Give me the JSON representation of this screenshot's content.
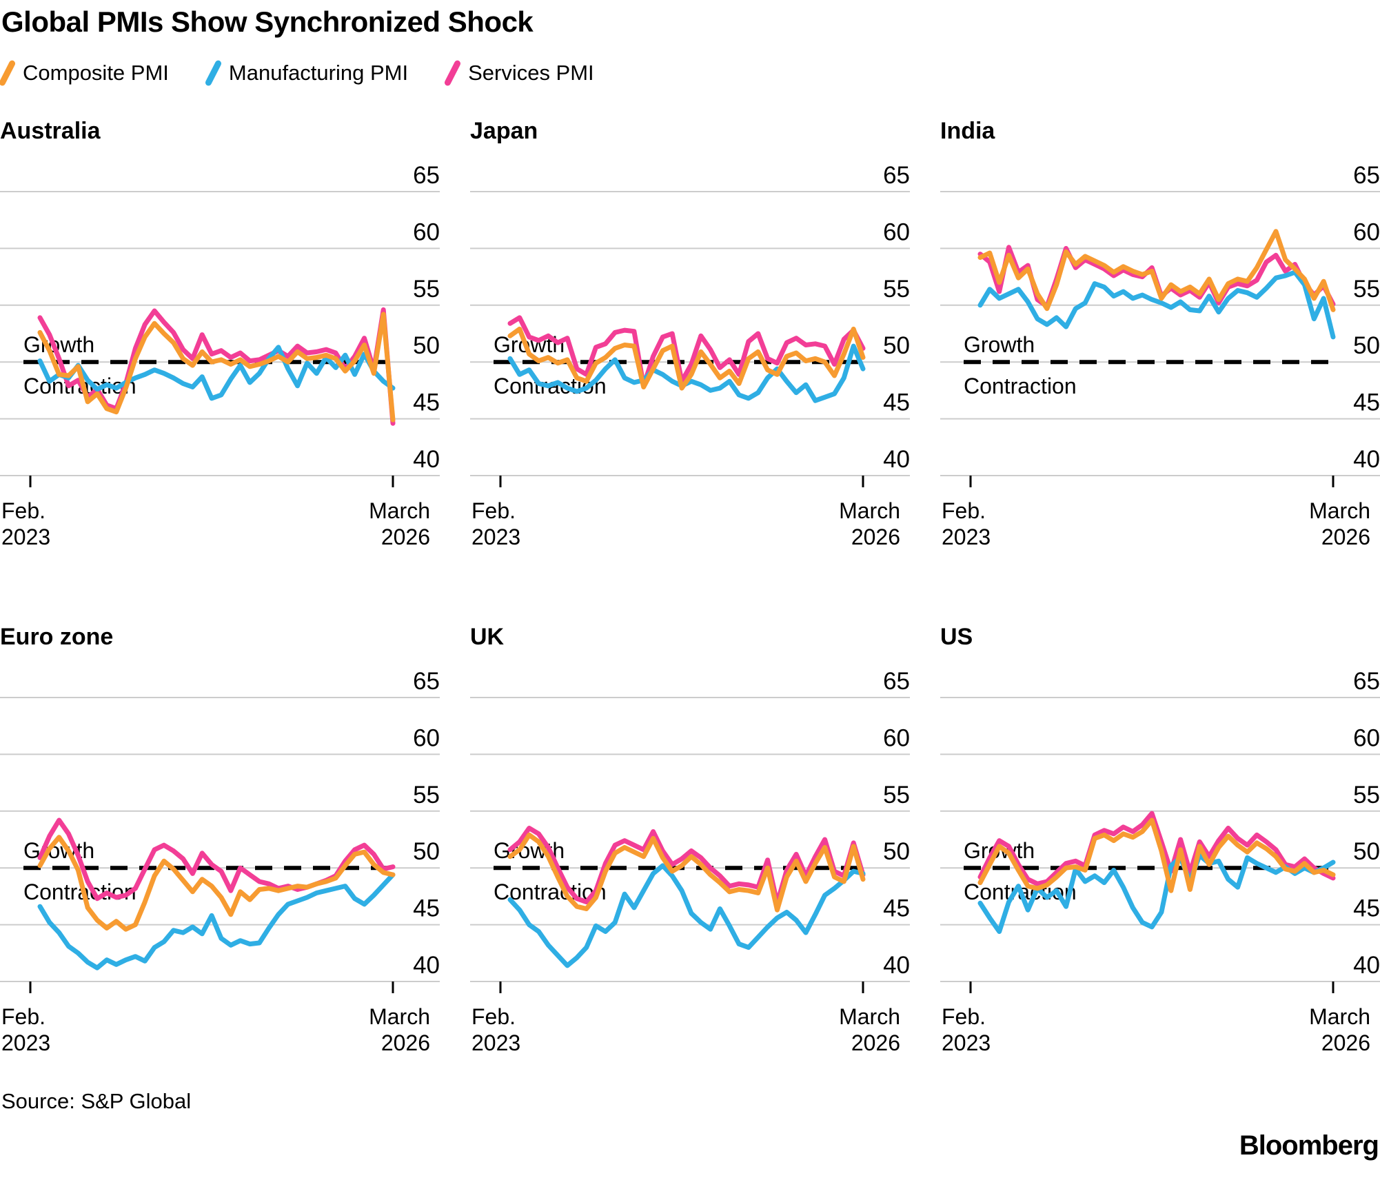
{
  "title": "Global PMIs Show Synchronized Shock",
  "legend": [
    {
      "label": "Composite PMI",
      "color": "#F79B31",
      "icon": "slash-icon"
    },
    {
      "label": "Manufacturing PMI",
      "color": "#2FAEE4",
      "icon": "slash-icon"
    },
    {
      "label": "Services PMI",
      "color": "#F23E96",
      "icon": "slash-icon"
    }
  ],
  "axis": {
    "y_ticks": [
      65,
      60,
      55,
      50,
      45,
      40
    ],
    "x_tick_start": "Feb.\n2023",
    "x_tick_end": "March\n2026",
    "threshold_value": 50,
    "growth_label": "Growth",
    "contraction_label": "Contraction",
    "grid_color": "#cccccc",
    "threshold_color": "#000000"
  },
  "source": "Source: S&P Global",
  "brand": "Bloomberg",
  "chart_data": [
    {
      "type": "line",
      "title": "Australia",
      "x": {
        "start": "Feb. 2023",
        "end": "March 2026",
        "points": 38
      },
      "ylim": [
        38,
        66.5
      ],
      "gridlines": [
        65,
        60,
        55,
        50,
        45,
        40
      ],
      "legend_position": "top",
      "series": [
        {
          "name": "Composite PMI",
          "color": "#F79B31",
          "values": [
            52.6,
            51.0,
            48.9,
            48.8,
            49.6,
            46.5,
            47.2,
            45.9,
            45.6,
            47.7,
            50.3,
            52.2,
            53.4,
            52.5,
            51.7,
            50.3,
            49.7,
            50.9,
            50.0,
            50.2,
            49.8,
            50.2,
            49.6,
            49.8,
            50.1,
            50.5,
            50.0,
            50.9,
            50.3,
            50.4,
            50.6,
            50.3,
            49.2,
            50.1,
            51.5,
            49.0,
            54.2,
            44.9
          ]
        },
        {
          "name": "Manufacturing PMI",
          "color": "#2FAEE4",
          "values": [
            50.1,
            48.3,
            48.9,
            48.6,
            49.7,
            48.4,
            47.6,
            48.0,
            47.7,
            48.2,
            48.6,
            48.9,
            49.3,
            49.0,
            48.6,
            48.1,
            47.8,
            48.7,
            46.8,
            47.1,
            48.5,
            49.7,
            48.2,
            49.0,
            50.3,
            51.3,
            49.4,
            47.9,
            49.9,
            49.0,
            50.4,
            49.5,
            50.6,
            48.9,
            50.7,
            49.2,
            48.3,
            47.7
          ]
        },
        {
          "name": "Services PMI",
          "color": "#F23E96",
          "values": [
            53.9,
            52.4,
            50.3,
            47.9,
            48.4,
            46.9,
            47.6,
            46.2,
            45.9,
            48.1,
            51.2,
            53.3,
            54.5,
            53.5,
            52.6,
            51.1,
            50.3,
            52.4,
            50.7,
            51.0,
            50.4,
            50.8,
            50.1,
            50.2,
            50.6,
            51.0,
            50.5,
            51.4,
            50.8,
            50.9,
            51.1,
            50.8,
            49.4,
            50.5,
            52.1,
            49.3,
            54.6,
            44.6
          ]
        }
      ]
    },
    {
      "type": "line",
      "title": "Japan",
      "x": {
        "start": "Feb. 2023",
        "end": "March 2026",
        "points": 38
      },
      "ylim": [
        38,
        66.5
      ],
      "gridlines": [
        65,
        60,
        55,
        50,
        45,
        40
      ],
      "legend_position": "top",
      "series": [
        {
          "name": "Composite PMI",
          "color": "#F79B31",
          "values": [
            52.3,
            52.9,
            50.7,
            50.1,
            50.4,
            49.9,
            50.2,
            48.6,
            48.3,
            49.9,
            50.4,
            51.2,
            51.5,
            51.4,
            47.8,
            49.4,
            51.0,
            51.4,
            47.7,
            48.9,
            50.9,
            49.8,
            48.6,
            49.2,
            48.1,
            50.3,
            50.9,
            49.3,
            48.9,
            50.5,
            50.8,
            50.1,
            50.3,
            50.0,
            48.8,
            50.7,
            52.9,
            50.4
          ]
        },
        {
          "name": "Manufacturing PMI",
          "color": "#2FAEE4",
          "values": [
            50.3,
            48.9,
            49.3,
            48.1,
            47.9,
            48.2,
            47.7,
            47.4,
            47.7,
            48.4,
            49.4,
            50.2,
            48.6,
            48.2,
            48.4,
            49.3,
            48.9,
            48.3,
            47.9,
            48.3,
            48.0,
            47.5,
            47.7,
            48.3,
            47.1,
            46.8,
            47.3,
            48.6,
            49.4,
            48.3,
            47.3,
            48.0,
            46.6,
            46.9,
            47.2,
            48.6,
            51.4,
            49.4
          ]
        },
        {
          "name": "Services PMI",
          "color": "#F23E96",
          "values": [
            53.4,
            53.9,
            52.2,
            51.9,
            52.3,
            51.7,
            52.1,
            49.4,
            48.9,
            51.3,
            51.6,
            52.6,
            52.8,
            52.7,
            47.9,
            50.5,
            52.2,
            52.5,
            48.3,
            49.8,
            52.3,
            51.1,
            49.5,
            50.2,
            48.9,
            51.8,
            52.5,
            50.3,
            49.9,
            51.7,
            52.1,
            51.5,
            51.6,
            51.4,
            49.8,
            52.0,
            52.8,
            51.2
          ]
        }
      ]
    },
    {
      "type": "line",
      "title": "India",
      "x": {
        "start": "Feb. 2023",
        "end": "March 2026",
        "points": 38
      },
      "ylim": [
        38,
        66.5
      ],
      "gridlines": [
        65,
        60,
        55,
        50,
        45,
        40
      ],
      "legend_position": "top",
      "series": [
        {
          "name": "Composite PMI",
          "color": "#F79B31",
          "values": [
            59.2,
            59.6,
            57.0,
            59.4,
            57.4,
            58.2,
            56.0,
            54.7,
            56.8,
            59.7,
            58.6,
            59.3,
            58.9,
            58.5,
            57.9,
            58.4,
            58.0,
            57.7,
            58.0,
            55.6,
            56.8,
            56.2,
            56.6,
            56.0,
            57.3,
            55.5,
            56.9,
            57.3,
            57.1,
            58.3,
            59.9,
            61.5,
            59.0,
            58.2,
            57.3,
            55.6,
            57.1,
            54.6
          ]
        },
        {
          "name": "Manufacturing PMI",
          "color": "#2FAEE4",
          "values": [
            55.0,
            56.4,
            55.6,
            56.0,
            56.4,
            55.3,
            53.8,
            53.3,
            53.9,
            53.1,
            54.7,
            55.2,
            56.9,
            56.6,
            55.8,
            56.2,
            55.6,
            55.9,
            55.5,
            55.2,
            54.8,
            55.3,
            54.6,
            54.5,
            55.8,
            54.4,
            55.6,
            56.3,
            56.1,
            55.7,
            56.5,
            57.4,
            57.6,
            57.9,
            56.8,
            53.8,
            55.6,
            52.2
          ]
        },
        {
          "name": "Services PMI",
          "color": "#F23E96",
          "values": [
            59.5,
            58.8,
            56.2,
            60.1,
            57.9,
            58.5,
            55.5,
            54.9,
            57.3,
            60.0,
            58.3,
            59.0,
            58.6,
            58.2,
            57.6,
            58.1,
            57.7,
            57.5,
            58.3,
            55.8,
            56.5,
            55.9,
            56.3,
            55.7,
            57.0,
            55.2,
            56.6,
            56.9,
            56.7,
            57.2,
            58.8,
            59.4,
            58.0,
            58.6,
            56.9,
            55.9,
            56.7,
            55.1
          ]
        }
      ]
    },
    {
      "type": "line",
      "title": "Euro zone",
      "x": {
        "start": "Feb. 2023",
        "end": "March 2026",
        "points": 38
      },
      "ylim": [
        38,
        66.5
      ],
      "gridlines": [
        65,
        60,
        55,
        50,
        45,
        40
      ],
      "legend_position": "top",
      "series": [
        {
          "name": "Composite PMI",
          "color": "#F79B31",
          "values": [
            50.2,
            51.7,
            52.7,
            51.5,
            49.8,
            46.5,
            45.4,
            44.7,
            45.3,
            44.6,
            45.0,
            47.0,
            49.3,
            50.6,
            49.9,
            48.9,
            47.9,
            49.0,
            48.4,
            47.4,
            45.9,
            47.9,
            47.2,
            48.1,
            48.2,
            48.0,
            48.2,
            48.4,
            48.3,
            48.6,
            48.8,
            49.1,
            50.2,
            51.2,
            51.4,
            50.3,
            49.6,
            49.4
          ]
        },
        {
          "name": "Manufacturing PMI",
          "color": "#2FAEE4",
          "values": [
            46.6,
            45.2,
            44.3,
            43.1,
            42.5,
            41.7,
            41.2,
            41.9,
            41.5,
            41.9,
            42.2,
            41.8,
            43.0,
            43.5,
            44.5,
            44.3,
            44.8,
            44.2,
            45.8,
            43.8,
            43.2,
            43.6,
            43.3,
            43.4,
            44.7,
            45.9,
            46.8,
            47.1,
            47.4,
            47.8,
            48.0,
            48.2,
            48.4,
            47.3,
            46.8,
            47.6,
            48.5,
            49.4
          ]
        },
        {
          "name": "Services PMI",
          "color": "#F23E96",
          "values": [
            50.9,
            52.8,
            54.2,
            53.0,
            51.1,
            48.8,
            47.3,
            47.8,
            47.4,
            47.6,
            48.2,
            49.9,
            51.6,
            52.0,
            51.5,
            50.8,
            49.5,
            51.3,
            50.3,
            49.7,
            48.0,
            50.0,
            49.4,
            48.8,
            48.6,
            48.2,
            48.4,
            48.1,
            48.3,
            48.6,
            48.9,
            49.3,
            50.6,
            51.6,
            52.0,
            51.2,
            49.9,
            50.1
          ]
        }
      ]
    },
    {
      "type": "line",
      "title": "UK",
      "x": {
        "start": "Feb. 2023",
        "end": "March 2026",
        "points": 38
      },
      "ylim": [
        38,
        66.5
      ],
      "gridlines": [
        65,
        60,
        55,
        50,
        45,
        40
      ],
      "legend_position": "top",
      "series": [
        {
          "name": "Composite PMI",
          "color": "#F79B31",
          "values": [
            51.0,
            51.6,
            52.9,
            52.3,
            51.0,
            49.2,
            47.5,
            46.6,
            46.4,
            47.4,
            49.7,
            51.3,
            51.8,
            51.4,
            51.0,
            52.6,
            50.9,
            49.7,
            50.2,
            51.0,
            50.3,
            49.4,
            48.7,
            47.9,
            48.1,
            48.0,
            47.8,
            50.0,
            46.3,
            49.2,
            50.6,
            48.8,
            50.4,
            51.8,
            49.2,
            48.8,
            51.9,
            49.0
          ]
        },
        {
          "name": "Manufacturing PMI",
          "color": "#2FAEE4",
          "values": [
            47.2,
            46.3,
            45.0,
            44.4,
            43.2,
            42.3,
            41.4,
            42.1,
            43.0,
            44.9,
            44.4,
            45.2,
            47.7,
            46.5,
            48.0,
            49.5,
            50.2,
            49.3,
            48.0,
            46.0,
            45.2,
            44.6,
            46.4,
            44.9,
            43.3,
            43.0,
            43.9,
            44.8,
            45.6,
            46.1,
            45.4,
            44.3,
            45.9,
            47.6,
            48.2,
            48.9,
            49.7,
            49.5
          ]
        },
        {
          "name": "Services PMI",
          "color": "#F23E96",
          "values": [
            51.6,
            52.3,
            53.5,
            53.0,
            51.8,
            50.0,
            48.3,
            47.3,
            47.0,
            48.0,
            50.4,
            52.0,
            52.4,
            52.0,
            51.6,
            53.2,
            51.5,
            50.3,
            50.8,
            51.5,
            50.9,
            50.0,
            49.3,
            48.4,
            48.6,
            48.5,
            48.3,
            50.7,
            46.9,
            49.8,
            51.2,
            49.3,
            51.0,
            52.5,
            49.7,
            49.3,
            52.2,
            49.4
          ]
        }
      ]
    },
    {
      "type": "line",
      "title": "US",
      "x": {
        "start": "Feb. 2023",
        "end": "March 2026",
        "points": 38
      },
      "ylim": [
        38,
        66.5
      ],
      "gridlines": [
        65,
        60,
        55,
        50,
        45,
        40
      ],
      "legend_position": "top",
      "series": [
        {
          "name": "Composite PMI",
          "color": "#F79B31",
          "values": [
            48.7,
            50.3,
            51.9,
            51.3,
            49.8,
            48.4,
            48.2,
            48.5,
            49.2,
            50.0,
            50.1,
            49.8,
            52.6,
            52.9,
            52.4,
            53.0,
            52.7,
            53.2,
            54.2,
            51.5,
            48.0,
            51.6,
            48.1,
            51.9,
            50.3,
            51.8,
            52.8,
            52.0,
            51.4,
            52.2,
            51.7,
            51.0,
            49.9,
            49.7,
            50.4,
            49.6,
            49.8,
            49.4
          ]
        },
        {
          "name": "Manufacturing PMI",
          "color": "#2FAEE4",
          "values": [
            46.9,
            45.6,
            44.4,
            47.0,
            48.4,
            46.3,
            48.2,
            47.4,
            48.0,
            46.6,
            49.9,
            48.8,
            49.3,
            48.7,
            49.8,
            48.3,
            46.5,
            45.2,
            44.8,
            46.1,
            50.2,
            50.9,
            48.8,
            51.1,
            50.4,
            50.6,
            49.0,
            48.3,
            50.9,
            50.4,
            50.0,
            49.6,
            50.1,
            49.5,
            50.0,
            49.6,
            50.0,
            50.5
          ]
        },
        {
          "name": "Services PMI",
          "color": "#F23E96",
          "values": [
            49.2,
            50.9,
            52.4,
            51.9,
            50.3,
            49.0,
            48.6,
            48.8,
            49.6,
            50.4,
            50.6,
            50.2,
            52.9,
            53.3,
            53.0,
            53.6,
            53.2,
            53.8,
            54.8,
            52.3,
            49.7,
            52.5,
            49.6,
            52.3,
            51.0,
            52.4,
            53.5,
            52.6,
            52.0,
            52.9,
            52.3,
            51.6,
            50.3,
            50.1,
            50.8,
            50.0,
            49.5,
            49.1
          ]
        }
      ]
    }
  ]
}
